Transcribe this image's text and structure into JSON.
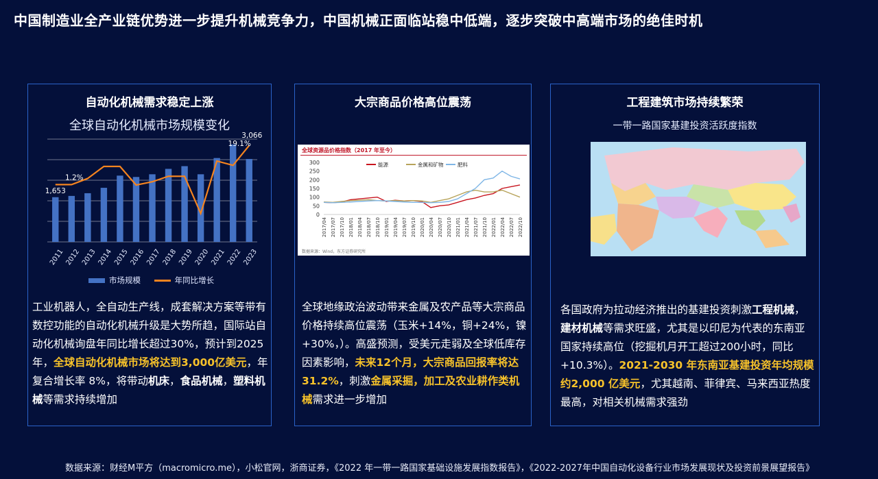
{
  "title": "中国制造业全产业链优势进一步提升机械竞争力，中国机械正面临站稳中低端，逐步突破中高端市场的绝佳时机",
  "panels": {
    "automation": {
      "title": "自动化机械需求稳定上涨",
      "chart_title": "全球自动化机械市场规模变化",
      "text_parts": [
        {
          "t": "工业机器人，全自动生产线，成套解决方案等带有数控功能的自动化机械升级是大势所趋，国际站自动化机械询盘年同比增长超过30%，预计到2025 年，",
          "s": "n"
        },
        {
          "t": "全球自动化机械市场将达到3,000亿美元",
          "s": "hl"
        },
        {
          "t": "，年复合增长率 8%，将带动",
          "s": "n"
        },
        {
          "t": "机床",
          "s": "bd"
        },
        {
          "t": "，",
          "s": "n"
        },
        {
          "t": "食品机械",
          "s": "bd"
        },
        {
          "t": "，",
          "s": "n"
        },
        {
          "t": "塑料机械",
          "s": "bd"
        },
        {
          "t": "等需求持续增加",
          "s": "n"
        }
      ]
    },
    "commodity": {
      "title": "大宗商品价格高位震荡",
      "image_title": "全球资源品价格指数（2017 年至今）",
      "image_source": "数据来源：Wind，东方证券研究所",
      "text_parts": [
        {
          "t": "全球地缘政治波动带来金属及农产品等大宗商品价格持续高位震荡（玉米+14%，铜+24%，镍+30%，）。高盛预测，受美元走弱及全球低库存因素影响，",
          "s": "n"
        },
        {
          "t": "未来12个月，大宗商品回报率将达31.2%",
          "s": "hl"
        },
        {
          "t": "，刺激",
          "s": "n"
        },
        {
          "t": "金属采掘，加工及农业耕作类机械",
          "s": "hl"
        },
        {
          "t": "需求进一步增加",
          "s": "n"
        }
      ]
    },
    "construction": {
      "title": "工程建筑市场持续繁荣",
      "subtitle": "一带一路国家基建投资活跃度指数",
      "text_parts": [
        {
          "t": "各国政府为拉动经济推出的基建投资刺激",
          "s": "n"
        },
        {
          "t": "工程机械",
          "s": "bd"
        },
        {
          "t": "，",
          "s": "n"
        },
        {
          "t": "建材机械",
          "s": "bd"
        },
        {
          "t": "等需求旺盛，尤其是以印尼为代表的东南亚国家持续高位（挖掘机月开工超过200小时，同比+10.3%）。",
          "s": "n"
        },
        {
          "t": "2021-2030 年东南亚基建投资年均规模约2,000 亿美元",
          "s": "hl"
        },
        {
          "t": "，尤其越南、菲律宾、马来西亚热度最高，对相关机械需求强劲",
          "s": "n"
        }
      ]
    }
  },
  "footer": "数据来源：财经M平方（macromicro.me），小松官网，浙商证券，《2022 年一带一路国家基础设施发展指数报告》，《2022-2027年中国自动化设备行业市场发展现状及投资前景展望报告》",
  "chart_data": [
    {
      "type": "bar",
      "title": "全球自动化机械市场规模变化",
      "categories": [
        "2011",
        "2012",
        "2013",
        "2014",
        "2015",
        "2016",
        "2017",
        "2018",
        "2019",
        "2020",
        "2021",
        "2022",
        "2023"
      ],
      "series": [
        {
          "name": "市场规模",
          "type": "bar",
          "values": [
            1653,
            1700,
            1800,
            2000,
            2450,
            2400,
            2500,
            2700,
            2800,
            2500,
            3100,
            3600,
            3066
          ]
        },
        {
          "name": "年同比增长",
          "type": "line",
          "values": [
            1.2,
            1.2,
            4.0,
            9.5,
            9.5,
            1.0,
            2.5,
            5.0,
            5.0,
            -12.0,
            12.0,
            10.0,
            19.1
          ]
        }
      ],
      "data_labels": [
        {
          "series": "市场规模",
          "index": 0,
          "text": "1,653"
        },
        {
          "series": "市场规模",
          "index": 12,
          "text": "3,066"
        },
        {
          "series": "年同比增长",
          "index": 1,
          "text": "1.2%"
        },
        {
          "series": "年同比增长",
          "index": 12,
          "text": "19.1%"
        }
      ],
      "legend_position": "bottom",
      "colors": {
        "bar": "#4472c4",
        "line": "#f5841f",
        "grid": "#ffffff"
      },
      "grid": true
    },
    {
      "type": "line",
      "title": "全球资源品价格指数（2017 年至今）",
      "x": [
        "2017/04",
        "2017/07",
        "2017/10",
        "2018/01",
        "2018/04",
        "2018/07",
        "2018/10",
        "2019/01",
        "2019/04",
        "2019/07",
        "2019/10",
        "2020/01",
        "2020/04",
        "2020/07",
        "2020/10",
        "2021/01",
        "2021/04",
        "2021/07",
        "2021/10",
        "2022/01",
        "2022/04",
        "2022/07",
        "2022/10"
      ],
      "ylim": [
        0,
        300
      ],
      "yticks": [
        0,
        50,
        100,
        150,
        200,
        250,
        300
      ],
      "series": [
        {
          "name": "能源",
          "color": "#c8141e",
          "values": [
            70,
            68,
            72,
            85,
            90,
            95,
            100,
            75,
            82,
            78,
            80,
            75,
            40,
            50,
            55,
            70,
            85,
            95,
            110,
            120,
            150,
            160,
            170
          ]
        },
        {
          "name": "金属和矿物",
          "color": "#b7a35a",
          "values": [
            72,
            70,
            75,
            80,
            82,
            85,
            80,
            78,
            80,
            78,
            80,
            78,
            70,
            80,
            90,
            110,
            130,
            140,
            130,
            130,
            140,
            120,
            100
          ]
        },
        {
          "name": "肥料",
          "color": "#7fb6e6",
          "values": [
            70,
            68,
            70,
            72,
            75,
            78,
            80,
            78,
            75,
            72,
            70,
            70,
            68,
            70,
            75,
            90,
            120,
            150,
            200,
            210,
            250,
            220,
            205
          ]
        }
      ],
      "legend_position": "top"
    }
  ]
}
